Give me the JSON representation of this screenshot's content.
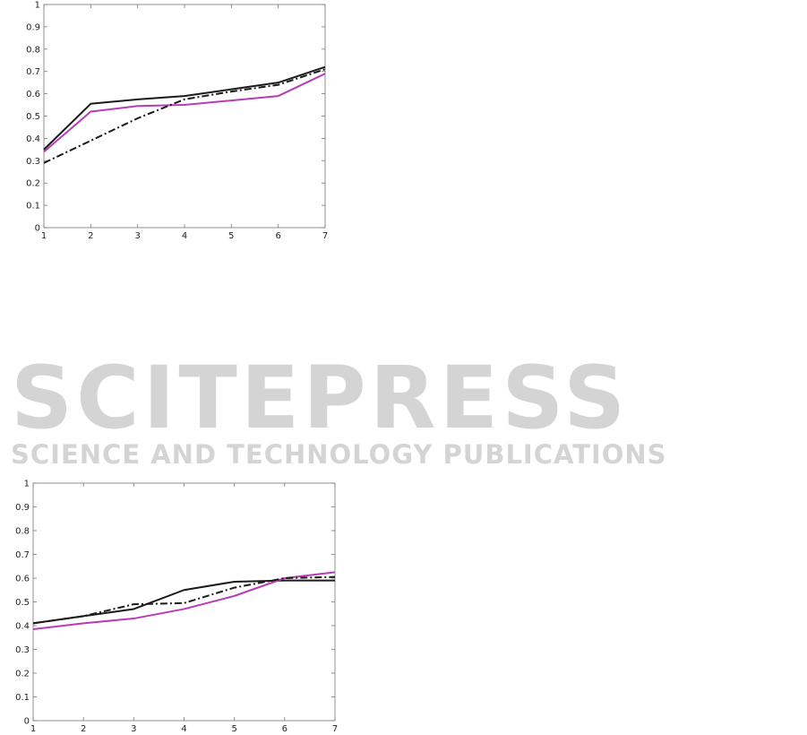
{
  "watermark": {
    "title": "SCITEPRESS",
    "subtitle": "SCIENCE AND TECHNOLOGY PUBLICATIONS"
  },
  "chart_data": [
    {
      "type": "line",
      "x": [
        1,
        2,
        3,
        4,
        5,
        6,
        7
      ],
      "xlim": [
        1,
        7
      ],
      "ylim": [
        0,
        1
      ],
      "xticks": [
        "1",
        "2",
        "3",
        "4",
        "5",
        "6",
        "7"
      ],
      "yticks": [
        "0",
        "0.1",
        "0.2",
        "0.3",
        "0.4",
        "0.5",
        "0.6",
        "0.7",
        "0.8",
        "0.9",
        "1"
      ],
      "grid": false,
      "series": [
        {
          "style": "solid",
          "color": "#1a1a1a",
          "values": [
            0.35,
            0.555,
            0.575,
            0.59,
            0.62,
            0.65,
            0.72
          ]
        },
        {
          "style": "solid",
          "color": "#b83cb8",
          "values": [
            0.34,
            0.52,
            0.545,
            0.55,
            0.57,
            0.59,
            0.69
          ]
        },
        {
          "style": "dashdot",
          "color": "#1a1a1a",
          "values": [
            0.29,
            0.39,
            0.49,
            0.575,
            0.61,
            0.64,
            0.71
          ]
        }
      ]
    },
    {
      "type": "line",
      "x": [
        1,
        2,
        3,
        4,
        5,
        6,
        7
      ],
      "xlim": [
        1,
        7
      ],
      "ylim": [
        0,
        1
      ],
      "xticks": [
        "1",
        "2",
        "3",
        "4",
        "5",
        "6",
        "7"
      ],
      "yticks": [
        "0",
        "0.1",
        "0.2",
        "0.3",
        "0.4",
        "0.5",
        "0.6",
        "0.7",
        "0.8",
        "0.9",
        "1"
      ],
      "grid": false,
      "series": [
        {
          "style": "solid",
          "color": "#1a1a1a",
          "values": [
            0.41,
            0.44,
            0.47,
            0.55,
            0.585,
            0.59,
            0.59
          ]
        },
        {
          "style": "solid",
          "color": "#b83cb8",
          "values": [
            0.385,
            0.41,
            0.43,
            0.47,
            0.525,
            0.6,
            0.625
          ]
        },
        {
          "style": "dashdot",
          "color": "#1a1a1a",
          "values": [
            0.41,
            0.44,
            0.49,
            0.495,
            0.56,
            0.6,
            0.605
          ]
        }
      ]
    }
  ]
}
